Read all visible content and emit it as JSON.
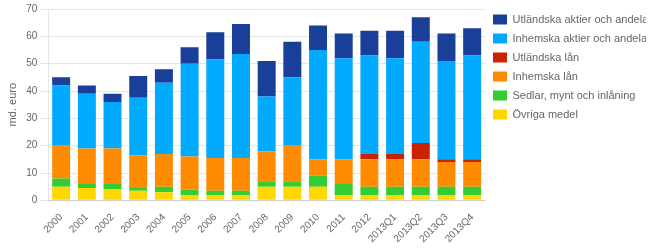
{
  "chart_data": {
    "type": "bar",
    "stacked": true,
    "ylabel": "md. euro",
    "categories": [
      "2000",
      "2001",
      "2002",
      "2003",
      "2004",
      "2005",
      "2006",
      "2007",
      "2008",
      "2009",
      "2010",
      "2011",
      "2012",
      "2013Q1",
      "2013Q2",
      "2013Q3",
      "2013Q4"
    ],
    "series": [
      {
        "name": "Övriga medel",
        "color": "#FFD700",
        "values": [
          5.0,
          4.5,
          4.0,
          3.5,
          3.0,
          2.0,
          2.0,
          2.0,
          5.0,
          5.0,
          5.0,
          2.0,
          2.0,
          2.0,
          2.0,
          2.0,
          2.0
        ]
      },
      {
        "name": "Sedlar, mynt och inlåning",
        "color": "#33CC33",
        "values": [
          3.0,
          1.5,
          2.0,
          1.0,
          2.0,
          2.0,
          1.5,
          1.5,
          2.0,
          2.0,
          4.0,
          4.0,
          3.0,
          3.0,
          3.0,
          3.0,
          3.0
        ]
      },
      {
        "name": "Inhemska lån",
        "color": "#FF8C00",
        "values": [
          12.0,
          13.0,
          13.0,
          12.0,
          12.0,
          12.0,
          12.0,
          12.0,
          11.0,
          13.0,
          6.0,
          9.0,
          10.0,
          10.0,
          10.0,
          9.0,
          9.0
        ]
      },
      {
        "name": "Utländska lån",
        "color": "#CC2200",
        "values": [
          0.0,
          0.0,
          0.0,
          0.0,
          0.0,
          0.0,
          0.0,
          0.0,
          0.0,
          0.0,
          0.0,
          0.0,
          2.0,
          2.0,
          6.0,
          1.0,
          1.0
        ]
      },
      {
        "name": "Inhemska aktier och andelar",
        "color": "#00AAFF",
        "values": [
          22.0,
          20.0,
          17.0,
          21.0,
          26.0,
          34.0,
          36.0,
          38.0,
          20.0,
          25.0,
          40.0,
          37.0,
          36.0,
          35.0,
          37.0,
          36.0,
          38.0
        ]
      },
      {
        "name": "Utländska aktier och andelar",
        "color": "#1A3F99",
        "values": [
          3.0,
          3.0,
          3.0,
          8.0,
          5.0,
          6.0,
          10.0,
          11.0,
          13.0,
          13.0,
          9.0,
          9.0,
          9.0,
          10.0,
          9.0,
          10.0,
          10.0
        ]
      }
    ],
    "ylim": [
      0,
      70
    ],
    "yticks": [
      0,
      10,
      20,
      30,
      40,
      50,
      60,
      70
    ],
    "grid": true,
    "legend": "right"
  }
}
